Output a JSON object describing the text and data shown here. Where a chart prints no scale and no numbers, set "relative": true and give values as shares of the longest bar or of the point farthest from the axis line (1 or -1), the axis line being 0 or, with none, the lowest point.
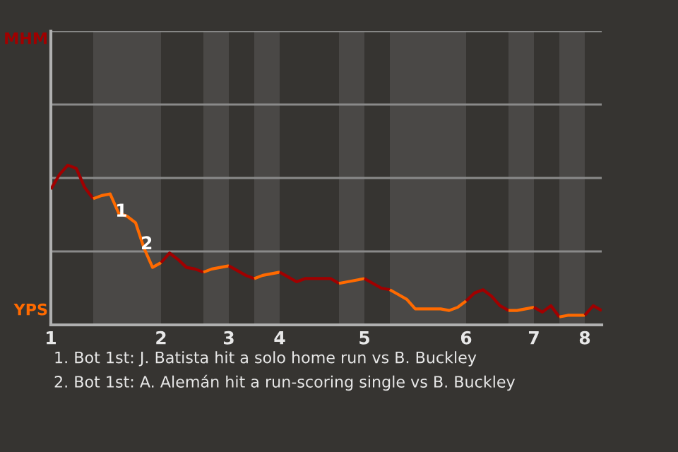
{
  "chart_data": {
    "type": "line",
    "relative": true,
    "categories": [
      "1",
      null,
      null,
      null,
      null,
      null,
      null,
      null,
      null,
      null,
      null,
      null,
      null,
      "2",
      null,
      null,
      null,
      null,
      null,
      null,
      null,
      "3",
      null,
      null,
      null,
      null,
      null,
      "4",
      null,
      null,
      null,
      null,
      null,
      null,
      null,
      null,
      null,
      "5",
      null,
      null,
      null,
      null,
      null,
      null,
      null,
      null,
      null,
      null,
      null,
      "6",
      null,
      null,
      null,
      null,
      null,
      null,
      null,
      "7",
      null,
      null,
      null,
      null,
      null,
      "8",
      null,
      null
    ],
    "marker": "none",
    "line_style": "solid",
    "series": [
      {
        "color": "#a00000",
        "values": [
          0.85,
          0.94,
          1.0,
          0.98,
          0.86,
          0.79,
          null,
          null,
          null,
          null,
          null,
          null,
          null,
          null,
          null,
          null,
          null,
          null,
          null,
          null,
          null,
          null,
          null,
          null,
          null,
          null,
          null,
          null,
          null,
          null,
          null,
          null,
          null,
          null,
          null,
          null,
          null,
          null,
          null,
          null,
          null,
          null,
          null,
          null,
          null,
          null,
          null,
          null,
          null,
          null,
          null,
          null,
          null,
          null,
          null,
          null,
          null,
          null,
          null,
          null,
          null,
          null,
          null,
          null,
          null,
          null
        ]
      },
      {
        "color": "#ff6a00",
        "values": [
          null,
          null,
          null,
          null,
          null,
          0.79,
          0.81,
          0.82,
          0.7,
          0.68,
          0.64,
          0.48,
          0.36,
          0.39,
          null,
          null,
          null,
          null,
          null,
          null,
          null,
          null,
          null,
          null,
          null,
          null,
          null,
          null,
          null,
          null,
          null,
          null,
          null,
          null,
          null,
          null,
          null,
          null,
          null,
          null,
          null,
          null,
          null,
          null,
          null,
          null,
          null,
          null,
          null,
          null,
          null,
          null,
          null,
          null,
          null,
          null,
          null,
          null,
          null,
          null,
          null,
          null,
          null,
          null,
          null,
          null
        ]
      },
      {
        "color": "#a00000",
        "values": [
          null,
          null,
          null,
          null,
          null,
          null,
          null,
          null,
          null,
          null,
          null,
          null,
          null,
          0.39,
          0.45,
          0.41,
          0.36,
          0.35,
          0.33,
          null,
          null,
          null,
          null,
          null,
          null,
          null,
          null,
          null,
          null,
          null,
          null,
          null,
          null,
          null,
          null,
          null,
          null,
          null,
          null,
          null,
          null,
          null,
          null,
          null,
          null,
          null,
          null,
          null,
          null,
          null,
          null,
          null,
          null,
          null,
          null,
          null,
          null,
          null,
          null,
          null,
          null,
          null,
          null,
          null,
          null,
          null
        ]
      },
      {
        "color": "#ff6a00",
        "values": [
          null,
          null,
          null,
          null,
          null,
          null,
          null,
          null,
          null,
          null,
          null,
          null,
          null,
          null,
          null,
          null,
          null,
          null,
          0.33,
          0.35,
          0.36,
          0.37,
          null,
          null,
          null,
          null,
          null,
          null,
          null,
          null,
          null,
          null,
          null,
          null,
          null,
          null,
          null,
          null,
          null,
          null,
          null,
          null,
          null,
          null,
          null,
          null,
          null,
          null,
          null,
          null,
          null,
          null,
          null,
          null,
          null,
          null,
          null,
          null,
          null,
          null,
          null,
          null,
          null,
          null,
          null,
          null
        ]
      },
      {
        "color": "#a00000",
        "values": [
          null,
          null,
          null,
          null,
          null,
          null,
          null,
          null,
          null,
          null,
          null,
          null,
          null,
          null,
          null,
          null,
          null,
          null,
          null,
          null,
          null,
          0.37,
          0.34,
          0.31,
          0.29,
          null,
          null,
          null,
          null,
          null,
          null,
          null,
          null,
          null,
          null,
          null,
          null,
          null,
          null,
          null,
          null,
          null,
          null,
          null,
          null,
          null,
          null,
          null,
          null,
          null,
          null,
          null,
          null,
          null,
          null,
          null,
          null,
          null,
          null,
          null,
          null,
          null,
          null,
          null,
          null,
          null
        ]
      },
      {
        "color": "#ff6a00",
        "values": [
          null,
          null,
          null,
          null,
          null,
          null,
          null,
          null,
          null,
          null,
          null,
          null,
          null,
          null,
          null,
          null,
          null,
          null,
          null,
          null,
          null,
          null,
          null,
          null,
          0.29,
          0.31,
          0.32,
          0.33,
          null,
          null,
          null,
          null,
          null,
          null,
          null,
          null,
          null,
          null,
          null,
          null,
          null,
          null,
          null,
          null,
          null,
          null,
          null,
          null,
          null,
          null,
          null,
          null,
          null,
          null,
          null,
          null,
          null,
          null,
          null,
          null,
          null,
          null,
          null,
          null,
          null,
          null
        ]
      },
      {
        "color": "#a00000",
        "values": [
          null,
          null,
          null,
          null,
          null,
          null,
          null,
          null,
          null,
          null,
          null,
          null,
          null,
          null,
          null,
          null,
          null,
          null,
          null,
          null,
          null,
          null,
          null,
          null,
          null,
          null,
          null,
          0.33,
          0.3,
          0.27,
          0.29,
          0.29,
          0.29,
          0.29,
          0.26,
          null,
          null,
          null,
          null,
          null,
          null,
          null,
          null,
          null,
          null,
          null,
          null,
          null,
          null,
          null,
          null,
          null,
          null,
          null,
          null,
          null,
          null,
          null,
          null,
          null,
          null,
          null,
          null,
          null,
          null,
          null
        ]
      },
      {
        "color": "#ff6a00",
        "values": [
          null,
          null,
          null,
          null,
          null,
          null,
          null,
          null,
          null,
          null,
          null,
          null,
          null,
          null,
          null,
          null,
          null,
          null,
          null,
          null,
          null,
          null,
          null,
          null,
          null,
          null,
          null,
          null,
          null,
          null,
          null,
          null,
          null,
          null,
          0.26,
          0.27,
          0.28,
          0.29,
          null,
          null,
          null,
          null,
          null,
          null,
          null,
          null,
          null,
          null,
          null,
          null,
          null,
          null,
          null,
          null,
          null,
          null,
          null,
          null,
          null,
          null,
          null,
          null,
          null,
          null,
          null,
          null
        ]
      },
      {
        "color": "#a00000",
        "values": [
          null,
          null,
          null,
          null,
          null,
          null,
          null,
          null,
          null,
          null,
          null,
          null,
          null,
          null,
          null,
          null,
          null,
          null,
          null,
          null,
          null,
          null,
          null,
          null,
          null,
          null,
          null,
          null,
          null,
          null,
          null,
          null,
          null,
          null,
          null,
          null,
          null,
          0.29,
          0.26,
          0.23,
          0.22,
          null,
          null,
          null,
          null,
          null,
          null,
          null,
          null,
          null,
          null,
          null,
          null,
          null,
          null,
          null,
          null,
          null,
          null,
          null,
          null,
          null,
          null,
          null,
          null,
          null
        ]
      },
      {
        "color": "#ff6a00",
        "values": [
          null,
          null,
          null,
          null,
          null,
          null,
          null,
          null,
          null,
          null,
          null,
          null,
          null,
          null,
          null,
          null,
          null,
          null,
          null,
          null,
          null,
          null,
          null,
          null,
          null,
          null,
          null,
          null,
          null,
          null,
          null,
          null,
          null,
          null,
          null,
          null,
          null,
          null,
          null,
          null,
          0.22,
          0.19,
          0.16,
          0.1,
          0.1,
          0.1,
          0.1,
          0.09,
          0.11,
          0.15,
          null,
          null,
          null,
          null,
          null,
          null,
          null,
          null,
          null,
          null,
          null,
          null,
          null,
          null,
          null,
          null
        ]
      },
      {
        "color": "#a00000",
        "values": [
          null,
          null,
          null,
          null,
          null,
          null,
          null,
          null,
          null,
          null,
          null,
          null,
          null,
          null,
          null,
          null,
          null,
          null,
          null,
          null,
          null,
          null,
          null,
          null,
          null,
          null,
          null,
          null,
          null,
          null,
          null,
          null,
          null,
          null,
          null,
          null,
          null,
          null,
          null,
          null,
          null,
          null,
          null,
          null,
          null,
          null,
          null,
          null,
          null,
          0.15,
          0.2,
          0.22,
          0.18,
          0.12,
          0.09,
          null,
          null,
          null,
          null,
          null,
          null,
          null,
          null,
          null,
          null,
          null
        ]
      },
      {
        "color": "#ff6a00",
        "values": [
          null,
          null,
          null,
          null,
          null,
          null,
          null,
          null,
          null,
          null,
          null,
          null,
          null,
          null,
          null,
          null,
          null,
          null,
          null,
          null,
          null,
          null,
          null,
          null,
          null,
          null,
          null,
          null,
          null,
          null,
          null,
          null,
          null,
          null,
          null,
          null,
          null,
          null,
          null,
          null,
          null,
          null,
          null,
          null,
          null,
          null,
          null,
          null,
          null,
          null,
          null,
          null,
          null,
          null,
          0.09,
          0.09,
          0.1,
          0.11,
          null,
          null,
          null,
          null,
          null,
          null,
          null,
          null
        ]
      },
      {
        "color": "#a00000",
        "values": [
          null,
          null,
          null,
          null,
          null,
          null,
          null,
          null,
          null,
          null,
          null,
          null,
          null,
          null,
          null,
          null,
          null,
          null,
          null,
          null,
          null,
          null,
          null,
          null,
          null,
          null,
          null,
          null,
          null,
          null,
          null,
          null,
          null,
          null,
          null,
          null,
          null,
          null,
          null,
          null,
          null,
          null,
          null,
          null,
          null,
          null,
          null,
          null,
          null,
          null,
          null,
          null,
          null,
          null,
          null,
          null,
          null,
          0.11,
          0.08,
          0.12,
          0.05,
          null,
          null,
          null,
          null,
          null
        ]
      },
      {
        "color": "#ff6a00",
        "values": [
          null,
          null,
          null,
          null,
          null,
          null,
          null,
          null,
          null,
          null,
          null,
          null,
          null,
          null,
          null,
          null,
          null,
          null,
          null,
          null,
          null,
          null,
          null,
          null,
          null,
          null,
          null,
          null,
          null,
          null,
          null,
          null,
          null,
          null,
          null,
          null,
          null,
          null,
          null,
          null,
          null,
          null,
          null,
          null,
          null,
          null,
          null,
          null,
          null,
          null,
          null,
          null,
          null,
          null,
          null,
          null,
          null,
          null,
          null,
          null,
          0.05,
          0.06,
          0.06,
          0.06,
          null,
          null
        ]
      },
      {
        "color": "#a00000",
        "values": [
          null,
          null,
          null,
          null,
          null,
          null,
          null,
          null,
          null,
          null,
          null,
          null,
          null,
          null,
          null,
          null,
          null,
          null,
          null,
          null,
          null,
          null,
          null,
          null,
          null,
          null,
          null,
          null,
          null,
          null,
          null,
          null,
          null,
          null,
          null,
          null,
          null,
          null,
          null,
          null,
          null,
          null,
          null,
          null,
          null,
          null,
          null,
          null,
          null,
          null,
          null,
          null,
          null,
          null,
          null,
          null,
          null,
          null,
          null,
          null,
          null,
          null,
          null,
          0.06,
          0.12,
          0.09
        ]
      }
    ],
    "ref_lines": [
      {
        "axis": "y",
        "value": 0.46,
        "color": "#8a8a8a"
      },
      {
        "axis": "y",
        "value": 0.92,
        "color": "#8a8a8a"
      },
      {
        "axis": "y",
        "value": 1.38,
        "color": "#8a8a8a"
      },
      {
        "axis": "y",
        "value": 1.84,
        "color": "#8a8a8a"
      }
    ],
    "annotations": [
      "1",
      "2",
      "MHM",
      "YPS",
      "1. Bot 1st: J. Batista hit a solo home run vs B. Buckley",
      "2. Bot 1st: A. Alemán hit a run-scoring single vs B. Buckley"
    ]
  }
}
